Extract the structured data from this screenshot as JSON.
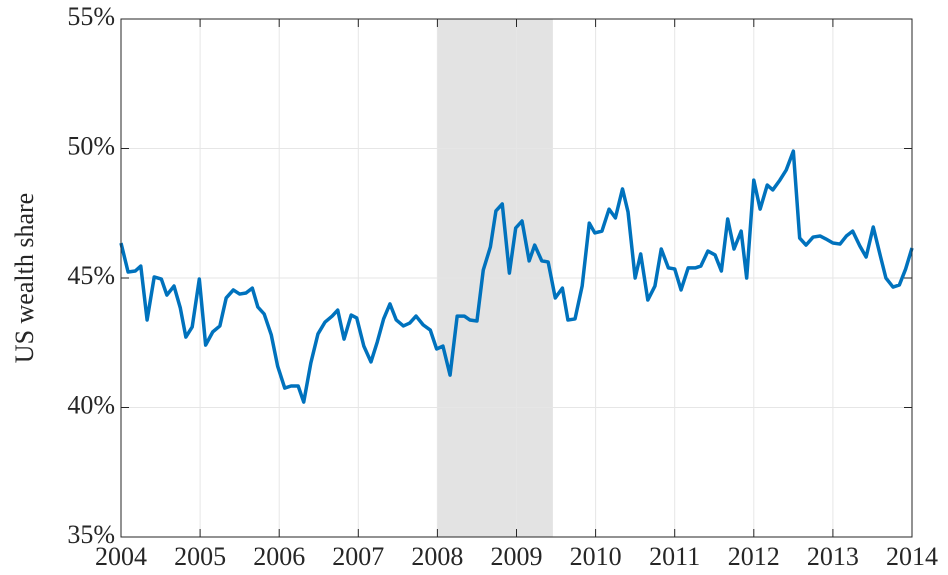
{
  "chart_data": {
    "type": "line",
    "y_label": "US wealth share",
    "xlim": [
      2004,
      2014
    ],
    "xticks": [
      2004,
      2005,
      2006,
      2007,
      2008,
      2009,
      2010,
      2011,
      2012,
      2013,
      2014
    ],
    "ylim": [
      35,
      55
    ],
    "yticks": [
      {
        "value": 35,
        "label": "35%"
      },
      {
        "value": 40,
        "label": "40%"
      },
      {
        "value": 45,
        "label": "45%"
      },
      {
        "value": 50,
        "label": "50%"
      },
      {
        "value": 55,
        "label": "55%"
      }
    ],
    "grid": true,
    "shaded_region": {
      "x": [
        2008,
        2009.46
      ],
      "color": "#e3e3e3"
    },
    "x": [
      2004.0,
      2004.09,
      2004.18,
      2004.25,
      2004.33,
      2004.42,
      2004.51,
      2004.58,
      2004.67,
      2004.75,
      2004.82,
      2004.9,
      2004.99,
      2005.07,
      2005.16,
      2005.25,
      2005.33,
      2005.42,
      2005.5,
      2005.58,
      2005.66,
      2005.73,
      2005.81,
      2005.9,
      2005.98,
      2006.07,
      2006.15,
      2006.24,
      2006.31,
      2006.4,
      2006.49,
      2006.58,
      2006.67,
      2006.74,
      2006.82,
      2006.91,
      2006.98,
      2007.07,
      2007.16,
      2007.24,
      2007.32,
      2007.4,
      2007.48,
      2007.57,
      2007.65,
      2007.73,
      2007.82,
      2007.91,
      2007.99,
      2008.07,
      2008.16,
      2008.25,
      2008.34,
      2008.41,
      2008.5,
      2008.58,
      2008.67,
      2008.74,
      2008.82,
      2008.91,
      2008.99,
      2009.07,
      2009.16,
      2009.23,
      2009.32,
      2009.4,
      2009.49,
      2009.58,
      2009.65,
      2009.74,
      2009.83,
      2009.92,
      2009.99,
      2010.08,
      2010.17,
      2010.25,
      2010.34,
      2010.41,
      2010.5,
      2010.57,
      2010.66,
      2010.75,
      2010.83,
      2010.92,
      2011.0,
      2011.08,
      2011.17,
      2011.26,
      2011.33,
      2011.42,
      2011.51,
      2011.59,
      2011.67,
      2011.75,
      2011.84,
      2011.91,
      2012.0,
      2012.08,
      2012.17,
      2012.24,
      2012.33,
      2012.41,
      2012.5,
      2012.58,
      2012.66,
      2012.75,
      2012.84,
      2012.91,
      2013.0,
      2013.09,
      2013.17,
      2013.25,
      2013.34,
      2013.42,
      2013.51,
      2013.6,
      2013.67,
      2013.76,
      2013.84,
      2013.92,
      2014.0
    ],
    "series": [
      {
        "color": "#0072bd",
        "values": [
          46.35,
          45.23,
          45.27,
          45.46,
          43.38,
          45.04,
          44.96,
          44.34,
          44.69,
          43.84,
          42.72,
          43.11,
          44.96,
          42.41,
          42.92,
          43.15,
          44.23,
          44.54,
          44.38,
          44.42,
          44.61,
          43.88,
          43.61,
          42.8,
          41.6,
          40.75,
          40.83,
          40.83,
          40.21,
          41.72,
          42.84,
          43.3,
          43.53,
          43.76,
          42.64,
          43.57,
          43.46,
          42.37,
          41.76,
          42.53,
          43.42,
          44.0,
          43.38,
          43.15,
          43.26,
          43.53,
          43.19,
          42.99,
          42.26,
          42.37,
          41.25,
          43.53,
          43.53,
          43.38,
          43.34,
          45.31,
          46.2,
          47.59,
          47.86,
          45.19,
          46.93,
          47.2,
          45.66,
          46.27,
          45.66,
          45.62,
          44.23,
          44.61,
          43.38,
          43.42,
          44.69,
          47.12,
          46.74,
          46.81,
          47.66,
          47.32,
          48.44,
          47.55,
          45.0,
          45.93,
          44.15,
          44.69,
          46.12,
          45.39,
          45.35,
          44.54,
          45.39,
          45.39,
          45.46,
          46.04,
          45.89,
          45.27,
          47.28,
          46.12,
          46.81,
          45.0,
          48.78,
          47.66,
          48.59,
          48.4,
          48.78,
          49.17,
          49.9,
          46.54,
          46.27,
          46.58,
          46.62,
          46.51,
          46.35,
          46.31,
          46.62,
          46.81,
          46.24,
          45.81,
          46.97,
          45.85,
          45.0,
          44.65,
          44.73,
          45.35,
          46.16
        ]
      }
    ]
  }
}
